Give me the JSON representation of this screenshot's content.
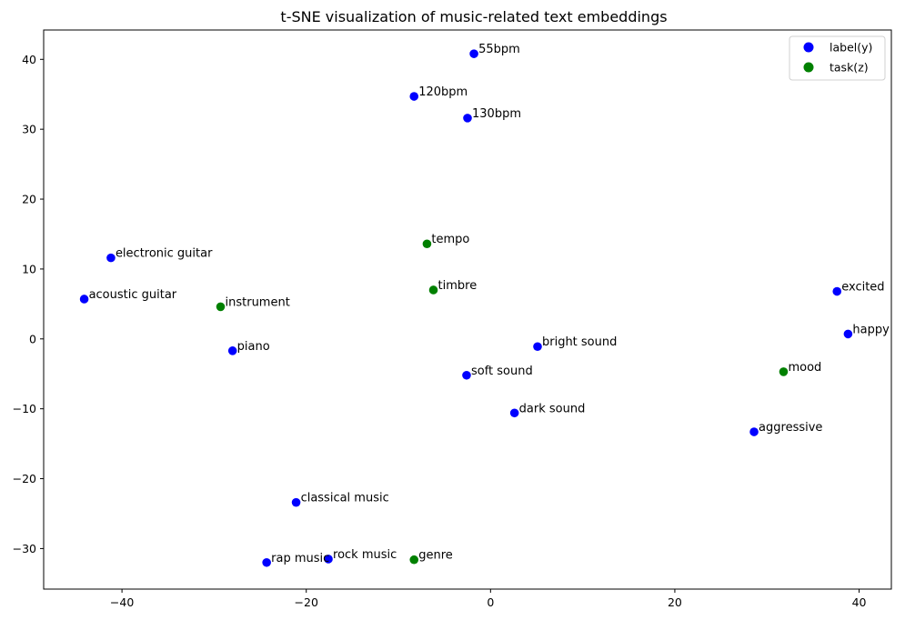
{
  "chart_data": {
    "type": "scatter",
    "title": "t-SNE visualization of music-related text embeddings",
    "xlabel": "",
    "ylabel": "",
    "xlim": [
      -48.5,
      43.5
    ],
    "ylim": [
      -35.8,
      44.2
    ],
    "xticks": [
      -40,
      -20,
      0,
      20,
      40
    ],
    "yticks": [
      -30,
      -20,
      -10,
      0,
      10,
      20,
      30,
      40
    ],
    "grid": false,
    "legend_position": "top-right",
    "colors": {
      "label": "#0000ff",
      "task": "#008000"
    },
    "series": [
      {
        "name": "label(y)",
        "color": "#0000ff",
        "points": [
          {
            "x": -1.8,
            "y": 40.8,
            "label": "55bpm"
          },
          {
            "x": -8.3,
            "y": 34.7,
            "label": "120bpm"
          },
          {
            "x": -2.5,
            "y": 31.6,
            "label": "130bpm"
          },
          {
            "x": -41.2,
            "y": 11.6,
            "label": "electronic guitar"
          },
          {
            "x": -44.1,
            "y": 5.7,
            "label": "acoustic guitar"
          },
          {
            "x": -28.0,
            "y": -1.7,
            "label": "piano"
          },
          {
            "x": 5.1,
            "y": -1.1,
            "label": "bright sound"
          },
          {
            "x": -2.6,
            "y": -5.2,
            "label": "soft sound"
          },
          {
            "x": 2.6,
            "y": -10.6,
            "label": "dark sound"
          },
          {
            "x": 37.6,
            "y": 6.8,
            "label": "excited"
          },
          {
            "x": 38.8,
            "y": 0.7,
            "label": "happy"
          },
          {
            "x": 28.6,
            "y": -13.3,
            "label": "aggressive"
          },
          {
            "x": -21.1,
            "y": -23.4,
            "label": "classical music"
          },
          {
            "x": -24.3,
            "y": -32.0,
            "label": "rap music"
          },
          {
            "x": -17.6,
            "y": -31.5,
            "label": "rock music"
          }
        ]
      },
      {
        "name": "task(z)",
        "color": "#008000",
        "points": [
          {
            "x": -6.9,
            "y": 13.6,
            "label": "tempo"
          },
          {
            "x": -6.2,
            "y": 7.0,
            "label": "timbre"
          },
          {
            "x": -29.3,
            "y": 4.6,
            "label": "instrument"
          },
          {
            "x": 31.8,
            "y": -4.7,
            "label": "mood"
          },
          {
            "x": -8.3,
            "y": -31.6,
            "label": "genre"
          }
        ]
      }
    ]
  }
}
